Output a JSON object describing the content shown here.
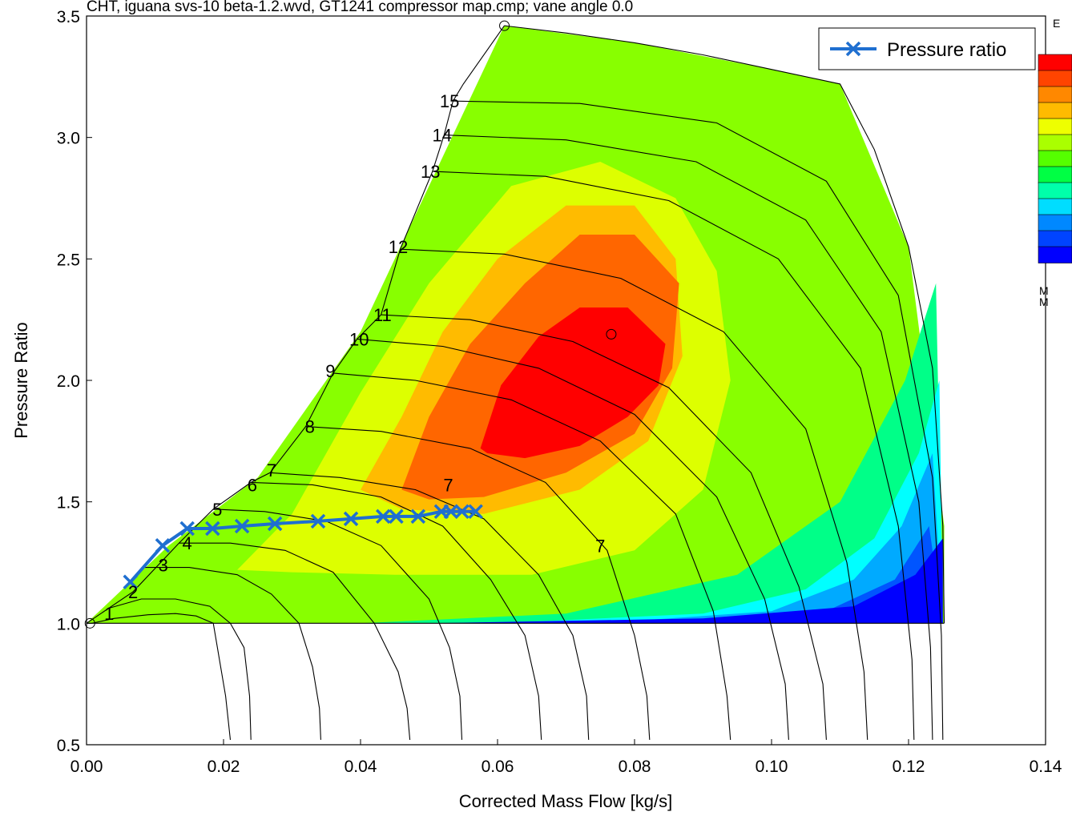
{
  "chart_data": {
    "type": "line",
    "title": "CHT, iguana svs-10 beta-1.2.wvd, GT1241 compressor map.cmp; vane angle 0.0",
    "xlabel": "Corrected Mass Flow  [kg/s]",
    "ylabel": "Pressure Ratio",
    "xlim": [
      0.0,
      0.14
    ],
    "ylim": [
      0.5,
      3.5
    ],
    "x_ticks": [
      "0.00",
      "0.02",
      "0.04",
      "0.06",
      "0.08",
      "0.10",
      "0.12",
      "0.14"
    ],
    "y_ticks": [
      "0.5",
      "1.0",
      "1.5",
      "2.0",
      "2.5",
      "3.0",
      "3.5"
    ],
    "x_tick_values": [
      0.0,
      0.02,
      0.04,
      0.06,
      0.08,
      0.1,
      0.12,
      0.14
    ],
    "y_tick_values": [
      0.5,
      1.0,
      1.5,
      2.0,
      2.5,
      3.0,
      3.5
    ],
    "grid": false,
    "legend_position": "top-right",
    "series": [
      {
        "name": "Pressure ratio",
        "color": "#1f6fd0",
        "marker": "x",
        "x": [
          0.0064,
          0.0111,
          0.0147,
          0.0184,
          0.0227,
          0.0275,
          0.0338,
          0.0386,
          0.0433,
          0.0452,
          0.0484,
          0.0518,
          0.0532,
          0.0548,
          0.0568
        ],
        "y": [
          1.17,
          1.32,
          1.39,
          1.39,
          1.4,
          1.41,
          1.42,
          1.43,
          1.44,
          1.44,
          1.44,
          1.46,
          1.46,
          1.46,
          1.46
        ]
      }
    ],
    "speed_line_labels": [
      {
        "text": "1",
        "x": 0.0033,
        "y": 1.04
      },
      {
        "text": "2",
        "x": 0.0068,
        "y": 1.13
      },
      {
        "text": "3",
        "x": 0.0112,
        "y": 1.24
      },
      {
        "text": "4",
        "x": 0.0147,
        "y": 1.33
      },
      {
        "text": "5",
        "x": 0.0191,
        "y": 1.47
      },
      {
        "text": "6",
        "x": 0.0242,
        "y": 1.57
      },
      {
        "text": "7",
        "x": 0.027,
        "y": 1.63
      },
      {
        "text": "8",
        "x": 0.0326,
        "y": 1.81
      },
      {
        "text": "9",
        "x": 0.0356,
        "y": 2.04
      },
      {
        "text": "10",
        "x": 0.0398,
        "y": 2.17
      },
      {
        "text": "11",
        "x": 0.0432,
        "y": 2.27
      },
      {
        "text": "12",
        "x": 0.0455,
        "y": 2.55
      },
      {
        "text": "13",
        "x": 0.0502,
        "y": 2.86
      },
      {
        "text": "14",
        "x": 0.0519,
        "y": 3.01
      },
      {
        "text": "15",
        "x": 0.053,
        "y": 3.15
      }
    ],
    "efficiency_labels": [
      {
        "text": "7",
        "x": 0.0528,
        "y": 1.57
      },
      {
        "text": "7",
        "x": 0.075,
        "y": 1.32
      }
    ],
    "speed_lines": [
      {
        "n": 1,
        "x": [
          0.0008,
          0.004,
          0.009,
          0.013,
          0.016,
          0.0185,
          0.0203,
          0.021
        ],
        "y": [
          1.0,
          1.02,
          1.035,
          1.04,
          1.03,
          1.0,
          0.7,
          0.52
        ]
      },
      {
        "n": 2,
        "x": [
          0.003,
          0.008,
          0.013,
          0.018,
          0.021,
          0.023,
          0.0238,
          0.024
        ],
        "y": [
          1.06,
          1.1,
          1.1,
          1.07,
          1.0,
          0.9,
          0.7,
          0.52
        ]
      },
      {
        "n": 3,
        "x": [
          0.0085,
          0.015,
          0.022,
          0.027,
          0.031,
          0.033,
          0.034,
          0.0342
        ],
        "y": [
          1.23,
          1.23,
          1.2,
          1.12,
          1.0,
          0.82,
          0.65,
          0.52
        ]
      },
      {
        "n": 4,
        "x": [
          0.0135,
          0.021,
          0.029,
          0.036,
          0.042,
          0.0455,
          0.0468,
          0.0472
        ],
        "y": [
          1.33,
          1.33,
          1.3,
          1.21,
          1.0,
          0.8,
          0.65,
          0.52
        ]
      },
      {
        "n": 5,
        "x": [
          0.0185,
          0.026,
          0.035,
          0.043,
          0.05,
          0.053,
          0.0545,
          0.0548
        ],
        "y": [
          1.47,
          1.46,
          1.42,
          1.32,
          1.1,
          0.9,
          0.7,
          0.52
        ]
      },
      {
        "n": 6,
        "x": [
          0.024,
          0.033,
          0.043,
          0.052,
          0.059,
          0.064,
          0.066,
          0.0664
        ],
        "y": [
          1.58,
          1.57,
          1.52,
          1.4,
          1.18,
          0.95,
          0.7,
          0.52
        ]
      },
      {
        "n": 7,
        "x": [
          0.0268,
          0.037,
          0.048,
          0.058,
          0.066,
          0.071,
          0.073,
          0.0733
        ],
        "y": [
          1.62,
          1.6,
          1.55,
          1.43,
          1.2,
          0.95,
          0.7,
          0.52
        ]
      },
      {
        "n": 8,
        "x": [
          0.032,
          0.043,
          0.056,
          0.067,
          0.076,
          0.08,
          0.0818,
          0.0822
        ],
        "y": [
          1.81,
          1.79,
          1.72,
          1.58,
          1.3,
          0.95,
          0.7,
          0.52
        ]
      },
      {
        "n": 9,
        "x": [
          0.036,
          0.048,
          0.062,
          0.075,
          0.086,
          0.0915,
          0.0935,
          0.094
        ],
        "y": [
          2.03,
          2.0,
          1.92,
          1.75,
          1.45,
          1.05,
          0.7,
          0.52
        ]
      },
      {
        "n": 10,
        "x": [
          0.0395,
          0.052,
          0.066,
          0.08,
          0.092,
          0.099,
          0.102,
          0.1025
        ],
        "y": [
          2.17,
          2.14,
          2.05,
          1.86,
          1.52,
          1.1,
          0.75,
          0.52
        ]
      },
      {
        "n": 11,
        "x": [
          0.043,
          0.056,
          0.071,
          0.085,
          0.097,
          0.104,
          0.1075,
          0.108
        ],
        "y": [
          2.27,
          2.25,
          2.16,
          1.97,
          1.62,
          1.15,
          0.75,
          0.52
        ]
      },
      {
        "n": 12,
        "x": [
          0.0458,
          0.061,
          0.078,
          0.093,
          0.105,
          0.111,
          0.1135,
          0.114
        ],
        "y": [
          2.54,
          2.52,
          2.42,
          2.2,
          1.8,
          1.25,
          0.8,
          0.52
        ]
      },
      {
        "n": 13,
        "x": [
          0.0505,
          0.067,
          0.085,
          0.101,
          0.113,
          0.1185,
          0.1205,
          0.1208
        ],
        "y": [
          2.86,
          2.84,
          2.74,
          2.5,
          2.05,
          1.4,
          0.85,
          0.52
        ]
      },
      {
        "n": 14,
        "x": [
          0.0522,
          0.07,
          0.089,
          0.105,
          0.116,
          0.1215,
          0.1232,
          0.1235
        ],
        "y": [
          3.01,
          2.99,
          2.9,
          2.66,
          2.2,
          1.5,
          0.9,
          0.52
        ]
      },
      {
        "n": 15,
        "x": [
          0.0535,
          0.072,
          0.092,
          0.108,
          0.1185,
          0.1235,
          0.1248,
          0.125
        ],
        "y": [
          3.15,
          3.14,
          3.06,
          2.82,
          2.35,
          1.6,
          0.95,
          0.52
        ]
      }
    ],
    "surge_line": {
      "x": [
        0.0,
        0.0068,
        0.0135,
        0.0185,
        0.024,
        0.0268,
        0.032,
        0.036,
        0.0395,
        0.043,
        0.0458,
        0.0505,
        0.0522,
        0.0535,
        0.055,
        0.061
      ],
      "y": [
        1.0,
        1.13,
        1.33,
        1.47,
        1.58,
        1.62,
        1.81,
        2.03,
        2.17,
        2.27,
        2.54,
        2.86,
        3.01,
        3.15,
        3.22,
        3.46
      ]
    },
    "map_boundary": {
      "x": [
        0.061,
        0.07,
        0.08,
        0.09,
        0.1,
        0.11,
        0.115,
        0.12,
        0.1235,
        0.125,
        0.1252
      ],
      "y": [
        3.46,
        3.43,
        3.39,
        3.34,
        3.28,
        3.22,
        2.95,
        2.55,
        2.05,
        1.4,
        1.0
      ]
    },
    "efficiency_contours": [
      {
        "color": "#88ff00",
        "x": [
          0.0,
          0.012,
          0.025,
          0.04,
          0.061,
          0.08,
          0.1,
          0.11,
          0.12,
          0.1252,
          0.1252,
          0.0
        ],
        "y": [
          1.0,
          1.32,
          1.6,
          2.2,
          3.46,
          3.39,
          3.28,
          3.22,
          2.55,
          1.4,
          1.0,
          1.0
        ]
      },
      {
        "color": "#00ff88",
        "x": [
          0.04,
          0.07,
          0.095,
          0.11,
          0.1195,
          0.124,
          0.125,
          0.09,
          0.06
        ],
        "y": [
          1.0,
          1.04,
          1.2,
          1.5,
          2.0,
          2.4,
          1.0,
          1.0,
          1.0
        ]
      },
      {
        "color": "#00ffff",
        "x": [
          0.06,
          0.09,
          0.105,
          0.115,
          0.1215,
          0.1245,
          0.125,
          0.09
        ],
        "y": [
          1.0,
          1.04,
          1.14,
          1.35,
          1.7,
          2.0,
          1.0,
          1.0
        ]
      },
      {
        "color": "#00aaff",
        "x": [
          0.075,
          0.1,
          0.112,
          0.119,
          0.1235,
          0.125,
          0.1
        ],
        "y": [
          1.0,
          1.05,
          1.18,
          1.4,
          1.7,
          1.0,
          1.0
        ]
      },
      {
        "color": "#0055ff",
        "x": [
          0.09,
          0.108,
          0.118,
          0.123,
          0.125,
          0.11
        ],
        "y": [
          1.0,
          1.05,
          1.18,
          1.4,
          1.0,
          1.0
        ]
      },
      {
        "color": "#0000ff",
        "x": [
          0.005,
          0.05,
          0.09,
          0.112,
          0.121,
          0.125,
          0.125,
          0.005
        ],
        "y": [
          1.0,
          1.0,
          1.02,
          1.07,
          1.2,
          1.35,
          1.0,
          1.0
        ]
      },
      {
        "color": "#ddff00",
        "x": [
          0.022,
          0.03,
          0.04,
          0.05,
          0.062,
          0.075,
          0.086,
          0.092,
          0.094,
          0.09,
          0.08,
          0.065,
          0.045,
          0.03
        ],
        "y": [
          1.22,
          1.45,
          1.95,
          2.4,
          2.8,
          2.9,
          2.75,
          2.45,
          2.0,
          1.55,
          1.3,
          1.2,
          1.2,
          1.21
        ]
      },
      {
        "color": "#ffbb00",
        "x": [
          0.04,
          0.046,
          0.052,
          0.06,
          0.07,
          0.08,
          0.086,
          0.087,
          0.082,
          0.072,
          0.058,
          0.046
        ],
        "y": [
          1.55,
          1.85,
          2.2,
          2.5,
          2.72,
          2.72,
          2.5,
          2.1,
          1.75,
          1.55,
          1.45,
          1.47
        ]
      },
      {
        "color": "#ff6600",
        "x": [
          0.046,
          0.05,
          0.056,
          0.064,
          0.072,
          0.08,
          0.0865,
          0.0855,
          0.08,
          0.07,
          0.058,
          0.05
        ],
        "y": [
          1.55,
          1.85,
          2.15,
          2.4,
          2.6,
          2.6,
          2.4,
          2.05,
          1.78,
          1.62,
          1.52,
          1.51
        ]
      },
      {
        "color": "#ff0000",
        "x": [
          0.0575,
          0.0605,
          0.066,
          0.072,
          0.079,
          0.0845,
          0.0835,
          0.079,
          0.072,
          0.064,
          0.0585
        ],
        "y": [
          1.72,
          1.98,
          2.18,
          2.3,
          2.3,
          2.15,
          1.98,
          1.85,
          1.73,
          1.68,
          1.7
        ]
      }
    ],
    "marked_points": [
      {
        "x": 0.061,
        "y": 3.46
      },
      {
        "x": 0.0766,
        "y": 2.19
      },
      {
        "x": 0.0005,
        "y": 1.0
      }
    ]
  },
  "side_panel": {
    "top_letter": "E",
    "bottom_letters": [
      "M",
      "M"
    ],
    "colorbar": [
      "#ff0000",
      "#ff4400",
      "#ff8800",
      "#ffbb00",
      "#eeff00",
      "#aaff00",
      "#55ff00",
      "#00ff44",
      "#00ffaa",
      "#00ddff",
      "#0088ff",
      "#0044ff",
      "#0000ff"
    ]
  }
}
